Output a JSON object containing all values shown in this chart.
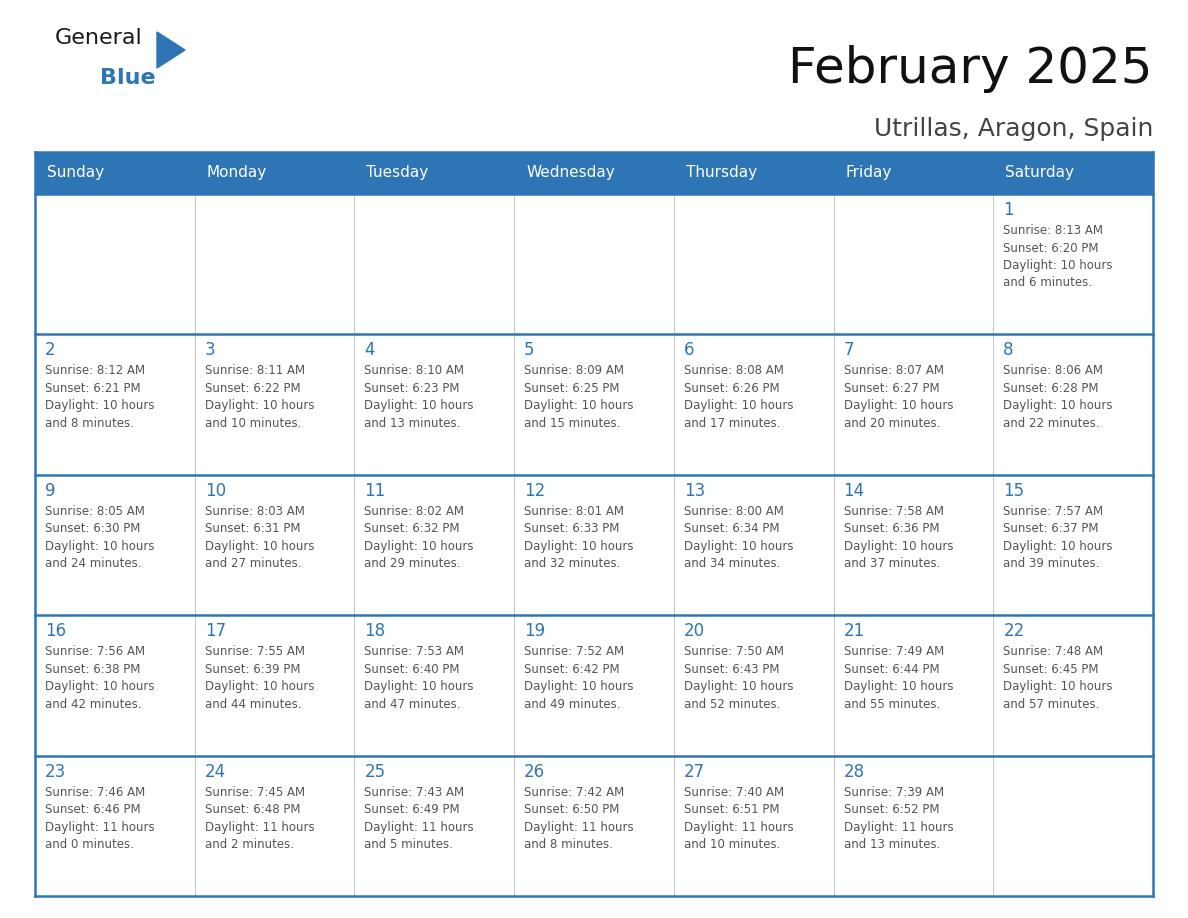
{
  "title": "February 2025",
  "subtitle": "Utrillas, Aragon, Spain",
  "header_bg": "#2E75B6",
  "header_text_color": "#FFFFFF",
  "cell_border_color": "#2E75B6",
  "day_number_color": "#2E75B6",
  "info_text_color": "#555555",
  "bg_color": "#FFFFFF",
  "days_of_week": [
    "Sunday",
    "Monday",
    "Tuesday",
    "Wednesday",
    "Thursday",
    "Friday",
    "Saturday"
  ],
  "calendar_data": [
    [
      null,
      null,
      null,
      null,
      null,
      null,
      {
        "day": "1",
        "sunrise": "8:13 AM",
        "sunset": "6:20 PM",
        "daylight": "10 hours\nand 6 minutes."
      }
    ],
    [
      {
        "day": "2",
        "sunrise": "8:12 AM",
        "sunset": "6:21 PM",
        "daylight": "10 hours\nand 8 minutes."
      },
      {
        "day": "3",
        "sunrise": "8:11 AM",
        "sunset": "6:22 PM",
        "daylight": "10 hours\nand 10 minutes."
      },
      {
        "day": "4",
        "sunrise": "8:10 AM",
        "sunset": "6:23 PM",
        "daylight": "10 hours\nand 13 minutes."
      },
      {
        "day": "5",
        "sunrise": "8:09 AM",
        "sunset": "6:25 PM",
        "daylight": "10 hours\nand 15 minutes."
      },
      {
        "day": "6",
        "sunrise": "8:08 AM",
        "sunset": "6:26 PM",
        "daylight": "10 hours\nand 17 minutes."
      },
      {
        "day": "7",
        "sunrise": "8:07 AM",
        "sunset": "6:27 PM",
        "daylight": "10 hours\nand 20 minutes."
      },
      {
        "day": "8",
        "sunrise": "8:06 AM",
        "sunset": "6:28 PM",
        "daylight": "10 hours\nand 22 minutes."
      }
    ],
    [
      {
        "day": "9",
        "sunrise": "8:05 AM",
        "sunset": "6:30 PM",
        "daylight": "10 hours\nand 24 minutes."
      },
      {
        "day": "10",
        "sunrise": "8:03 AM",
        "sunset": "6:31 PM",
        "daylight": "10 hours\nand 27 minutes."
      },
      {
        "day": "11",
        "sunrise": "8:02 AM",
        "sunset": "6:32 PM",
        "daylight": "10 hours\nand 29 minutes."
      },
      {
        "day": "12",
        "sunrise": "8:01 AM",
        "sunset": "6:33 PM",
        "daylight": "10 hours\nand 32 minutes."
      },
      {
        "day": "13",
        "sunrise": "8:00 AM",
        "sunset": "6:34 PM",
        "daylight": "10 hours\nand 34 minutes."
      },
      {
        "day": "14",
        "sunrise": "7:58 AM",
        "sunset": "6:36 PM",
        "daylight": "10 hours\nand 37 minutes."
      },
      {
        "day": "15",
        "sunrise": "7:57 AM",
        "sunset": "6:37 PM",
        "daylight": "10 hours\nand 39 minutes."
      }
    ],
    [
      {
        "day": "16",
        "sunrise": "7:56 AM",
        "sunset": "6:38 PM",
        "daylight": "10 hours\nand 42 minutes."
      },
      {
        "day": "17",
        "sunrise": "7:55 AM",
        "sunset": "6:39 PM",
        "daylight": "10 hours\nand 44 minutes."
      },
      {
        "day": "18",
        "sunrise": "7:53 AM",
        "sunset": "6:40 PM",
        "daylight": "10 hours\nand 47 minutes."
      },
      {
        "day": "19",
        "sunrise": "7:52 AM",
        "sunset": "6:42 PM",
        "daylight": "10 hours\nand 49 minutes."
      },
      {
        "day": "20",
        "sunrise": "7:50 AM",
        "sunset": "6:43 PM",
        "daylight": "10 hours\nand 52 minutes."
      },
      {
        "day": "21",
        "sunrise": "7:49 AM",
        "sunset": "6:44 PM",
        "daylight": "10 hours\nand 55 minutes."
      },
      {
        "day": "22",
        "sunrise": "7:48 AM",
        "sunset": "6:45 PM",
        "daylight": "10 hours\nand 57 minutes."
      }
    ],
    [
      {
        "day": "23",
        "sunrise": "7:46 AM",
        "sunset": "6:46 PM",
        "daylight": "11 hours\nand 0 minutes."
      },
      {
        "day": "24",
        "sunrise": "7:45 AM",
        "sunset": "6:48 PM",
        "daylight": "11 hours\nand 2 minutes."
      },
      {
        "day": "25",
        "sunrise": "7:43 AM",
        "sunset": "6:49 PM",
        "daylight": "11 hours\nand 5 minutes."
      },
      {
        "day": "26",
        "sunrise": "7:42 AM",
        "sunset": "6:50 PM",
        "daylight": "11 hours\nand 8 minutes."
      },
      {
        "day": "27",
        "sunrise": "7:40 AM",
        "sunset": "6:51 PM",
        "daylight": "11 hours\nand 10 minutes."
      },
      {
        "day": "28",
        "sunrise": "7:39 AM",
        "sunset": "6:52 PM",
        "daylight": "11 hours\nand 13 minutes."
      },
      null
    ]
  ],
  "logo_text_general": "General",
  "logo_text_blue": "Blue",
  "logo_color_general": "#1a1a1a",
  "logo_color_blue": "#2E75B6",
  "logo_triangle_color": "#2E75B6",
  "title_fontsize": 36,
  "subtitle_fontsize": 18,
  "header_fontsize": 11,
  "day_num_fontsize": 12,
  "info_fontsize": 8.5
}
